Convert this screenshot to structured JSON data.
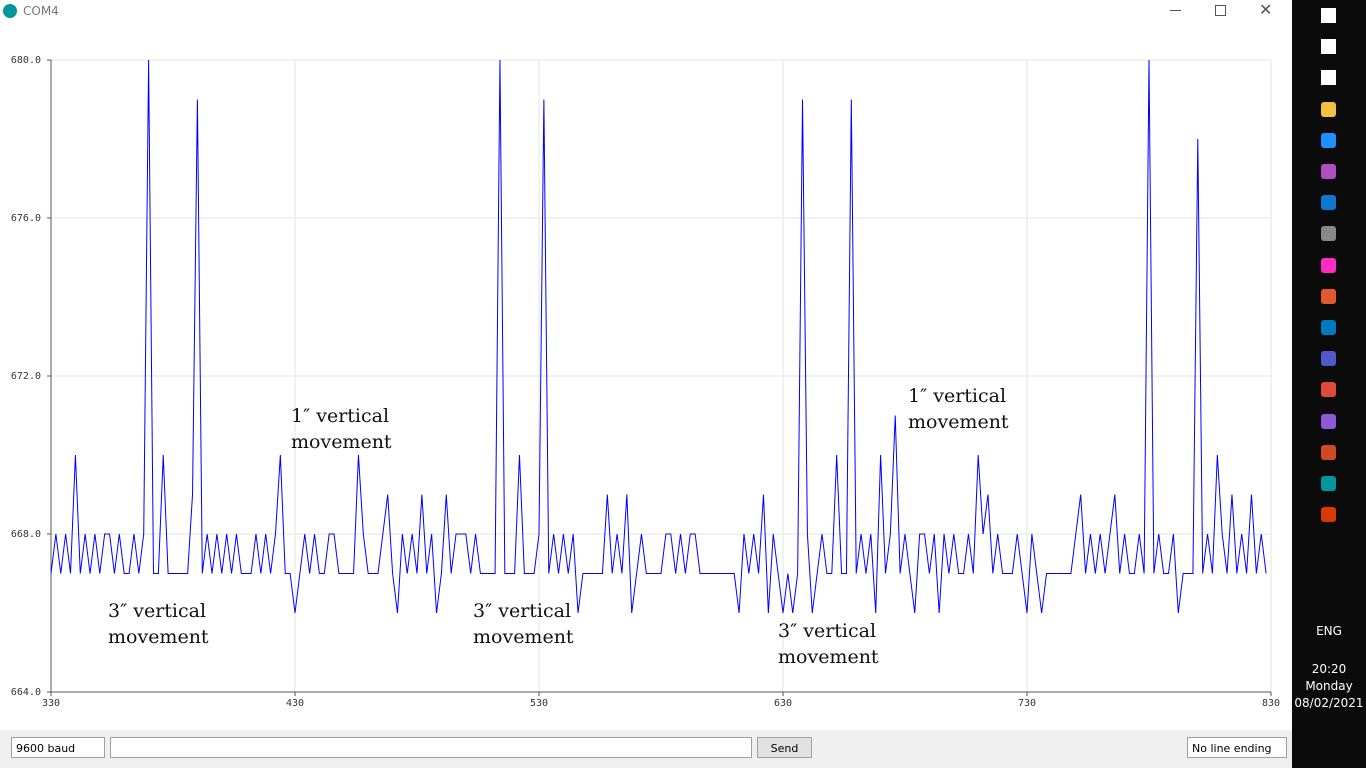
{
  "window": {
    "title": "COM4"
  },
  "chart_data": {
    "type": "line",
    "x": [
      330,
      332,
      334,
      336,
      338,
      340,
      342,
      344,
      346,
      348,
      350,
      352,
      354,
      356,
      358,
      360,
      362,
      364,
      366,
      368,
      370,
      372,
      374,
      376,
      378,
      380,
      382,
      384,
      386,
      388,
      390,
      392,
      394,
      396,
      398,
      400,
      402,
      404,
      406,
      408,
      410,
      412,
      414,
      416,
      418,
      420,
      422,
      424,
      426,
      428,
      430,
      432,
      434,
      436,
      438,
      440,
      442,
      444,
      446,
      448,
      450,
      452,
      454,
      456,
      458,
      460,
      462,
      464,
      466,
      468,
      470,
      472,
      474,
      476,
      478,
      480,
      482,
      484,
      486,
      488,
      490,
      492,
      494,
      496,
      498,
      500,
      502,
      504,
      506,
      508,
      510,
      512,
      514,
      516,
      518,
      520,
      522,
      524,
      526,
      528,
      530,
      532,
      534,
      536,
      538,
      540,
      542,
      544,
      546,
      548,
      550,
      552,
      554,
      556,
      558,
      560,
      562,
      564,
      566,
      568,
      570,
      572,
      574,
      576,
      578,
      580,
      582,
      584,
      586,
      588,
      590,
      592,
      594,
      596,
      598,
      600,
      602,
      604,
      606,
      608,
      610,
      612,
      614,
      616,
      618,
      620,
      622,
      624,
      626,
      628,
      630,
      632,
      634,
      636,
      638,
      640,
      642,
      644,
      646,
      648,
      650,
      652,
      654,
      656,
      658,
      660,
      662,
      664,
      666,
      668,
      670,
      672,
      674,
      676,
      678,
      680,
      682,
      684,
      686,
      688,
      690,
      692,
      694,
      696,
      698,
      700,
      702,
      704,
      706,
      708,
      710,
      712,
      714,
      716,
      718,
      720,
      722,
      724,
      726,
      728,
      730,
      732,
      734,
      736,
      738,
      740,
      742,
      744,
      746,
      748,
      750,
      752,
      754,
      756,
      758,
      760,
      762,
      764,
      766,
      768,
      770,
      772,
      774,
      776,
      778,
      780,
      782,
      784,
      786,
      788,
      790,
      792,
      794,
      796,
      798,
      800,
      802,
      804,
      806,
      808,
      810,
      812,
      814,
      816,
      818,
      820,
      822,
      824,
      826,
      828
    ],
    "series": [
      {
        "color": "#0000ff",
        "values": [
          667,
          668,
          667,
          668,
          667,
          670,
          667,
          668,
          667,
          668,
          667,
          668,
          668,
          667,
          668,
          667,
          667,
          668,
          667,
          668,
          680,
          667,
          667,
          670,
          667,
          667,
          667,
          667,
          667,
          669,
          679,
          667,
          668,
          667,
          668,
          667,
          668,
          667,
          668,
          667,
          667,
          667,
          668,
          667,
          668,
          667,
          668,
          670,
          667,
          667,
          666,
          667,
          668,
          667,
          668,
          667,
          667,
          668,
          668,
          667,
          667,
          667,
          667,
          670,
          668,
          667,
          667,
          667,
          668,
          669,
          667,
          666,
          668,
          667,
          668,
          667,
          669,
          667,
          668,
          666,
          667,
          669,
          667,
          668,
          668,
          668,
          667,
          668,
          667,
          667,
          667,
          667,
          680,
          667,
          667,
          667,
          670,
          667,
          667,
          667,
          668,
          679,
          667,
          668,
          667,
          668,
          667,
          668,
          666,
          667,
          667,
          667,
          667,
          667,
          669,
          667,
          668,
          667,
          669,
          666,
          667,
          668,
          667,
          667,
          667,
          667,
          668,
          668,
          667,
          668,
          667,
          668,
          668,
          667,
          667,
          667,
          667,
          667,
          667,
          667,
          667,
          666,
          668,
          667,
          668,
          667,
          669,
          666,
          668,
          667,
          666,
          667,
          666,
          667,
          679,
          668,
          666,
          667,
          668,
          667,
          667,
          670,
          667,
          667,
          679,
          667,
          668,
          667,
          668,
          666,
          670,
          667,
          668,
          671,
          667,
          668,
          667,
          666,
          668,
          668,
          667,
          668,
          666,
          668,
          667,
          668,
          667,
          667,
          668,
          667,
          670,
          668,
          669,
          667,
          668,
          667,
          667,
          667,
          668,
          667,
          666,
          668,
          667,
          666,
          667,
          667,
          667,
          667,
          667,
          667,
          668,
          669,
          667,
          668,
          667,
          668,
          667,
          668,
          669,
          667,
          668,
          667,
          667,
          668,
          667,
          680,
          667,
          668,
          667,
          667,
          668,
          666,
          667,
          667,
          667,
          678,
          667,
          668,
          667,
          670,
          668,
          667,
          669,
          667,
          668,
          667,
          669,
          667,
          668,
          667
        ]
      }
    ],
    "xlim": [
      330,
      830
    ],
    "xticks": [
      330,
      430,
      530,
      630,
      730,
      830
    ],
    "ylim": [
      664,
      680
    ],
    "yticks": [
      {
        "value": 664,
        "label": "664.0"
      },
      {
        "value": 668,
        "label": "668.0"
      },
      {
        "value": 672,
        "label": "672.0"
      },
      {
        "value": 676,
        "label": "676.0"
      },
      {
        "value": 680,
        "label": "680.0"
      }
    ],
    "grid": true,
    "annotations": [
      "3″ vertical movement",
      "1″ vertical movement",
      "3″ vertical movement",
      "3″ vertical movement",
      "1″ vertical movement"
    ]
  },
  "controls": {
    "baud": "9600 baud",
    "send": "Send",
    "line_ending": "No line ending"
  },
  "taskbar": {
    "language": "ENG",
    "time": "20:20",
    "day": "Monday",
    "date": "08/02/2021"
  }
}
